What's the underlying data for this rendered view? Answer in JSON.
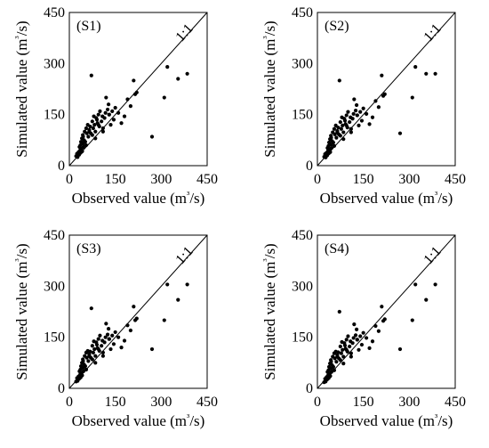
{
  "chart_data": [
    {
      "type": "scatter",
      "panel_label": "(S1)",
      "reference_label": "1:1",
      "xlabel": "Observed value (m³/s)",
      "ylabel": "Simulated value (m³/s)",
      "xlim": [
        0,
        450
      ],
      "ylim": [
        0,
        450
      ],
      "xticks": [
        "0",
        "150",
        "300",
        "450"
      ],
      "yticks": [
        "0",
        "150",
        "300",
        "450"
      ],
      "grid": false,
      "series": [
        {
          "x": [
            22,
            25,
            27,
            30,
            32,
            33,
            35,
            36,
            37,
            38,
            40,
            41,
            42,
            44,
            45,
            46,
            48,
            50,
            52,
            55,
            57,
            60,
            62,
            65,
            68,
            70,
            72,
            75,
            78,
            80,
            82,
            85,
            88,
            90,
            92,
            95,
            98,
            100,
            105,
            108,
            110,
            115,
            118,
            120,
            125,
            128,
            130,
            135,
            140,
            145,
            150,
            160,
            170,
            180,
            190,
            200,
            210,
            215,
            220,
            270,
            310,
            320,
            355,
            385,
            45,
            55,
            65,
            75,
            85,
            95,
            110,
            130
          ],
          "y": [
            28,
            35,
            25,
            40,
            32,
            55,
            45,
            60,
            38,
            70,
            50,
            80,
            42,
            90,
            65,
            55,
            75,
            100,
            70,
            110,
            95,
            120,
            85,
            100,
            115,
            95,
            265,
            130,
            110,
            145,
            120,
            100,
            140,
            135,
            125,
            150,
            115,
            160,
            130,
            145,
            110,
            140,
            155,
            200,
            165,
            180,
            150,
            120,
            160,
            135,
            170,
            155,
            125,
            145,
            195,
            175,
            250,
            210,
            215,
            85,
            200,
            290,
            255,
            270,
            85,
            60,
            105,
            90,
            80,
            120,
            100,
            150
          ]
        }
      ]
    },
    {
      "type": "scatter",
      "panel_label": "(S2)",
      "reference_label": "1:1",
      "xlabel": "Observed value (m³/s)",
      "ylabel": "Simulated value (m³/s)",
      "xlim": [
        0,
        450
      ],
      "ylim": [
        0,
        450
      ],
      "xticks": [
        "0",
        "150",
        "300",
        "450"
      ],
      "yticks": [
        "0",
        "150",
        "300",
        "450"
      ],
      "grid": false,
      "series": [
        {
          "x": [
            22,
            25,
            27,
            30,
            32,
            33,
            35,
            36,
            37,
            38,
            40,
            41,
            42,
            44,
            45,
            46,
            48,
            50,
            52,
            55,
            57,
            60,
            62,
            65,
            68,
            70,
            72,
            75,
            78,
            80,
            82,
            85,
            88,
            90,
            92,
            95,
            98,
            100,
            105,
            108,
            110,
            115,
            118,
            120,
            125,
            128,
            130,
            135,
            140,
            145,
            150,
            160,
            170,
            180,
            190,
            200,
            210,
            215,
            220,
            270,
            310,
            320,
            355,
            385,
            45,
            55,
            65,
            75,
            85,
            95,
            110,
            130
          ],
          "y": [
            26,
            34,
            24,
            38,
            30,
            52,
            44,
            58,
            36,
            68,
            48,
            78,
            40,
            88,
            62,
            52,
            72,
            98,
            68,
            108,
            92,
            118,
            82,
            98,
            112,
            92,
            250,
            128,
            108,
            142,
            118,
            98,
            138,
            132,
            122,
            148,
            112,
            158,
            128,
            142,
            108,
            138,
            152,
            195,
            162,
            178,
            148,
            118,
            158,
            132,
            168,
            152,
            122,
            142,
            190,
            172,
            265,
            205,
            210,
            95,
            200,
            290,
            270,
            270,
            82,
            58,
            102,
            88,
            78,
            118,
            98,
            148
          ]
        }
      ]
    },
    {
      "type": "scatter",
      "panel_label": "(S3)",
      "reference_label": "1:1",
      "xlabel": "Observed value (m³/s)",
      "ylabel": "Simulated value (m³/s)",
      "xlim": [
        0,
        450
      ],
      "ylim": [
        0,
        450
      ],
      "xticks": [
        "0",
        "150",
        "300",
        "450"
      ],
      "yticks": [
        "0",
        "150",
        "300",
        "450"
      ],
      "grid": false,
      "series": [
        {
          "x": [
            22,
            25,
            27,
            30,
            32,
            33,
            35,
            36,
            37,
            38,
            40,
            41,
            42,
            44,
            45,
            46,
            48,
            50,
            52,
            55,
            57,
            60,
            62,
            65,
            68,
            70,
            72,
            75,
            78,
            80,
            82,
            85,
            88,
            90,
            92,
            95,
            98,
            100,
            105,
            108,
            110,
            115,
            118,
            120,
            125,
            128,
            130,
            135,
            140,
            145,
            150,
            160,
            170,
            180,
            190,
            200,
            210,
            215,
            220,
            270,
            310,
            320,
            355,
            385,
            45,
            55,
            65,
            75,
            85,
            95,
            110,
            130
          ],
          "y": [
            20,
            30,
            22,
            35,
            28,
            50,
            40,
            55,
            32,
            65,
            45,
            75,
            38,
            85,
            60,
            50,
            70,
            95,
            65,
            105,
            90,
            110,
            80,
            95,
            108,
            90,
            235,
            125,
            105,
            138,
            115,
            95,
            135,
            128,
            118,
            145,
            110,
            155,
            125,
            140,
            105,
            135,
            150,
            190,
            158,
            175,
            145,
            115,
            155,
            130,
            165,
            150,
            120,
            140,
            185,
            170,
            240,
            200,
            205,
            115,
            200,
            305,
            260,
            305,
            80,
            55,
            100,
            85,
            75,
            115,
            95,
            145
          ]
        }
      ]
    },
    {
      "type": "scatter",
      "panel_label": "(S4)",
      "reference_label": "1:1",
      "xlabel": "Observed value (m³/s)",
      "ylabel": "Simulated value (m³/s)",
      "xlim": [
        0,
        450
      ],
      "ylim": [
        0,
        450
      ],
      "xticks": [
        "0",
        "150",
        "300",
        "450"
      ],
      "yticks": [
        "0",
        "150",
        "300",
        "450"
      ],
      "grid": false,
      "series": [
        {
          "x": [
            22,
            25,
            27,
            30,
            32,
            33,
            35,
            36,
            37,
            38,
            40,
            41,
            42,
            44,
            45,
            46,
            48,
            50,
            52,
            55,
            57,
            60,
            62,
            65,
            68,
            70,
            72,
            75,
            78,
            80,
            82,
            85,
            88,
            90,
            92,
            95,
            98,
            100,
            105,
            108,
            110,
            115,
            118,
            120,
            125,
            128,
            130,
            135,
            140,
            145,
            150,
            160,
            170,
            180,
            190,
            200,
            210,
            215,
            220,
            270,
            310,
            320,
            355,
            385,
            45,
            55,
            65,
            75,
            85,
            95,
            110,
            130
          ],
          "y": [
            18,
            28,
            20,
            33,
            26,
            48,
            38,
            53,
            30,
            63,
            43,
            73,
            36,
            83,
            58,
            48,
            68,
            93,
            63,
            103,
            88,
            108,
            78,
            93,
            106,
            88,
            225,
            123,
            103,
            136,
            113,
            93,
            133,
            126,
            116,
            143,
            108,
            153,
            123,
            138,
            103,
            133,
            148,
            188,
            156,
            173,
            143,
            113,
            153,
            128,
            163,
            148,
            118,
            138,
            183,
            168,
            240,
            198,
            203,
            115,
            200,
            305,
            260,
            305,
            78,
            53,
            98,
            83,
            73,
            113,
            93,
            143
          ]
        }
      ]
    }
  ]
}
